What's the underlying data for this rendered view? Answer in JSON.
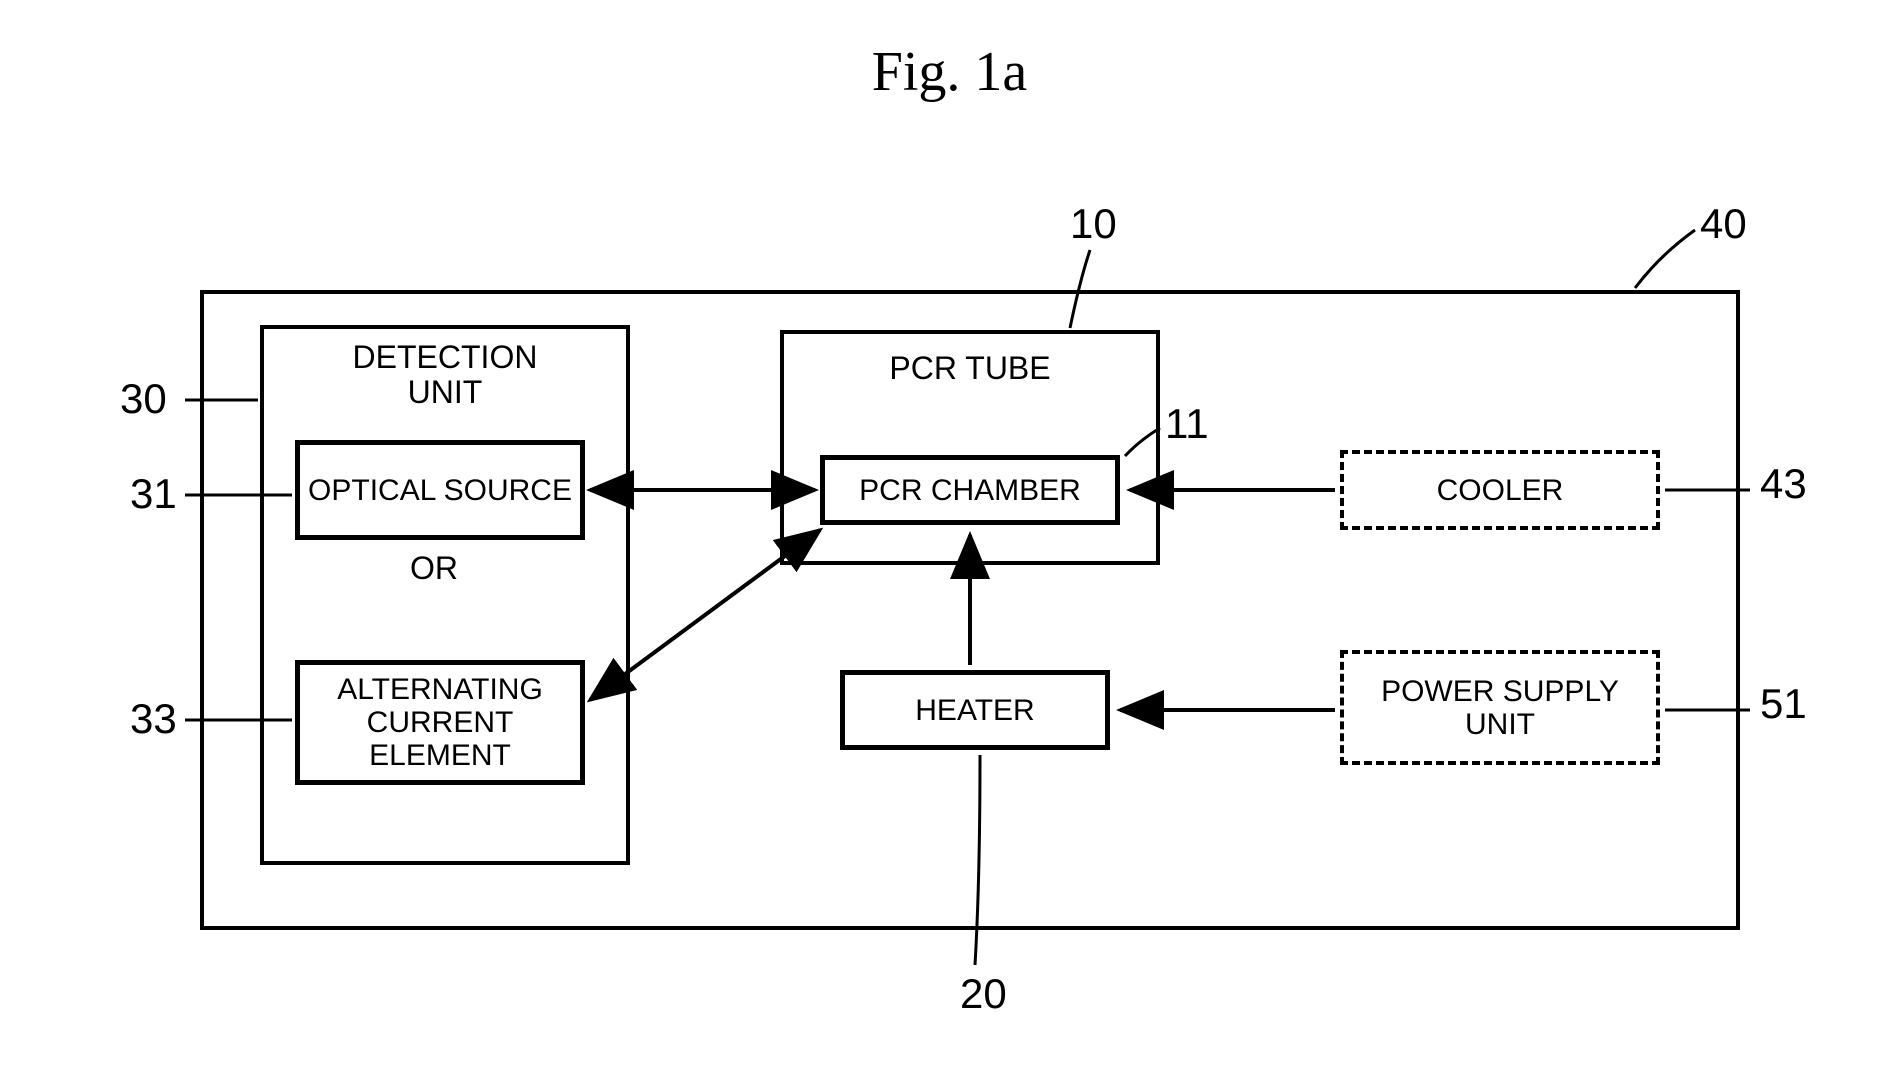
{
  "title": "Fig. 1a",
  "blocks": {
    "detection_unit": {
      "label": "DETECTION\nUNIT",
      "ref": "30"
    },
    "optical_source": {
      "label": "OPTICAL SOURCE",
      "ref": "31"
    },
    "or": "OR",
    "alt_current": {
      "label": "ALTERNATING CURRENT ELEMENT",
      "ref": "33"
    },
    "pcr_tube": {
      "label": "PCR TUBE",
      "ref": "10"
    },
    "pcr_chamber": {
      "label": "PCR CHAMBER",
      "ref": "11"
    },
    "cooler": {
      "label": "COOLER",
      "ref": "43"
    },
    "heater": {
      "label": "HEATER",
      "ref": "20"
    },
    "power_supply": {
      "label": "POWER SUPPLY UNIT",
      "ref": "51"
    },
    "outer": {
      "ref": "40"
    }
  },
  "style": {
    "title_fontsize": 56,
    "label_fontsize": 42,
    "block_fontsize": 30,
    "border_width": 4,
    "block_border_width": 5,
    "colors": {
      "stroke": "#000000",
      "background": "#ffffff"
    }
  },
  "arrows": [
    {
      "from": "optical_source",
      "to": "pcr_chamber",
      "type": "double"
    },
    {
      "from": "alt_current",
      "to": "pcr_chamber",
      "type": "double"
    },
    {
      "from": "heater",
      "to": "pcr_chamber",
      "type": "single"
    },
    {
      "from": "cooler",
      "to": "pcr_chamber",
      "type": "single"
    },
    {
      "from": "power_supply",
      "to": "heater",
      "type": "single"
    }
  ]
}
